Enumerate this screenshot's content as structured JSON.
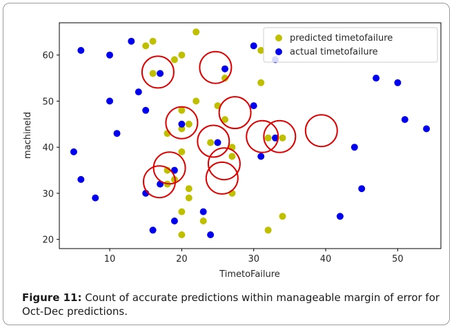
{
  "chart_data": {
    "type": "scatter",
    "xlabel": "TimetoFailure",
    "ylabel": "machineId",
    "xlim": [
      3,
      56
    ],
    "ylim": [
      18,
      67
    ],
    "xticks": [
      10,
      20,
      30,
      40,
      50
    ],
    "yticks": [
      20,
      30,
      40,
      50,
      60
    ],
    "grid": false,
    "legend_position": "top-right",
    "series": [
      {
        "name": "predicted timetofailure",
        "color": "#bfbf00",
        "points": [
          [
            22,
            65
          ],
          [
            15,
            62
          ],
          [
            16,
            63
          ],
          [
            19,
            59
          ],
          [
            20,
            60
          ],
          [
            31,
            61
          ],
          [
            16,
            56
          ],
          [
            26,
            55
          ],
          [
            31,
            54
          ],
          [
            22,
            50
          ],
          [
            20,
            48
          ],
          [
            25,
            49
          ],
          [
            21,
            45
          ],
          [
            20,
            44
          ],
          [
            18,
            43
          ],
          [
            26,
            46
          ],
          [
            27,
            40
          ],
          [
            25,
            41
          ],
          [
            24,
            41
          ],
          [
            32,
            42
          ],
          [
            34,
            42
          ],
          [
            20,
            39
          ],
          [
            27,
            38
          ],
          [
            18,
            35
          ],
          [
            19,
            33
          ],
          [
            18,
            32
          ],
          [
            21,
            31
          ],
          [
            21,
            29
          ],
          [
            27,
            30
          ],
          [
            20,
            26
          ],
          [
            23,
            24
          ],
          [
            32,
            22
          ],
          [
            34,
            25
          ],
          [
            20,
            21
          ]
        ]
      },
      {
        "name": "actual timetofailure",
        "color": "#0000ee",
        "points": [
          [
            6,
            61
          ],
          [
            10,
            60
          ],
          [
            13,
            63
          ],
          [
            30,
            62
          ],
          [
            33,
            59
          ],
          [
            17,
            56
          ],
          [
            26,
            57
          ],
          [
            14,
            52
          ],
          [
            10,
            50
          ],
          [
            15,
            48
          ],
          [
            30,
            49
          ],
          [
            11,
            43
          ],
          [
            20,
            45
          ],
          [
            5,
            39
          ],
          [
            25,
            41
          ],
          [
            31,
            38
          ],
          [
            33,
            42
          ],
          [
            19,
            35
          ],
          [
            6,
            33
          ],
          [
            17,
            32
          ],
          [
            8,
            29
          ],
          [
            15,
            30
          ],
          [
            16,
            22
          ],
          [
            19,
            24
          ],
          [
            23,
            26
          ],
          [
            24,
            21
          ],
          [
            44,
            40
          ],
          [
            45,
            31
          ],
          [
            47,
            55
          ],
          [
            50,
            54
          ],
          [
            51,
            46
          ],
          [
            54,
            44
          ],
          [
            42,
            25
          ]
        ]
      }
    ],
    "annotations": {
      "shape": "circle",
      "color": "#e00000",
      "centers": [
        [
          16.7,
          56.3
        ],
        [
          24.7,
          57.3
        ],
        [
          20,
          45.3
        ],
        [
          27.4,
          47.5
        ],
        [
          24.4,
          41.3
        ],
        [
          31.2,
          42.3
        ],
        [
          33.6,
          42.3
        ],
        [
          39.4,
          43.6
        ],
        [
          18.3,
          35.5
        ],
        [
          25.9,
          36.4
        ],
        [
          16.9,
          32.5
        ],
        [
          25.6,
          33.3
        ]
      ]
    }
  },
  "caption": {
    "label": "Figure 11:",
    "text": " Count of accurate predictions within manageable margin of error for Oct-Dec predictions."
  }
}
